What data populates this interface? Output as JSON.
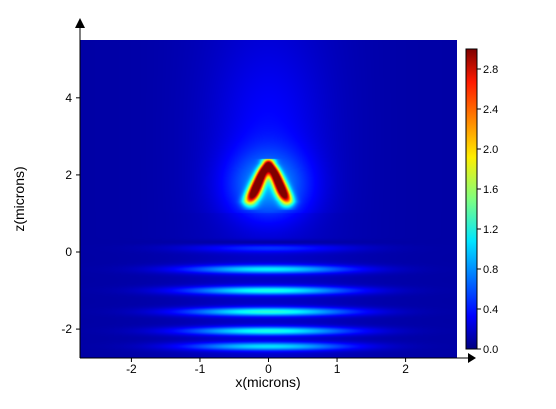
{
  "chart_data": {
    "type": "heatmap",
    "title": "",
    "xlabel": "x(microns)",
    "ylabel": "z(microns)",
    "xlim": [
      -2.75,
      2.75
    ],
    "ylim": [
      -2.75,
      5.5
    ],
    "x_ticks": [
      -2,
      -1,
      0,
      1,
      2
    ],
    "y_ticks": [
      -2,
      0,
      2,
      4
    ],
    "colorbar": {
      "range": [
        0.0,
        3.0
      ],
      "ticks": [
        "0.0",
        "0.4",
        "0.8",
        "1.2",
        "1.6",
        "2.0",
        "2.4",
        "2.8"
      ],
      "colormap": "jet"
    },
    "features": [
      {
        "kind": "background_beam",
        "x_center": 0.0,
        "x_sigma": 0.9,
        "level": 0.2
      },
      {
        "kind": "standing_wave_fringes",
        "z": [
          -2.45,
          -2.05,
          -1.55,
          -1.0,
          -0.45,
          0.1
        ],
        "peak_values": [
          0.85,
          1.0,
          1.05,
          1.0,
          0.9,
          0.3
        ],
        "x_sigma": 0.85
      },
      {
        "kind": "dark_fringe",
        "z": 0.25
      },
      {
        "kind": "hotspot_lobes",
        "x": [
          -0.18,
          0.18
        ],
        "z_range": [
          1.3,
          2.3
        ],
        "peak_value": 3.0
      }
    ]
  }
}
